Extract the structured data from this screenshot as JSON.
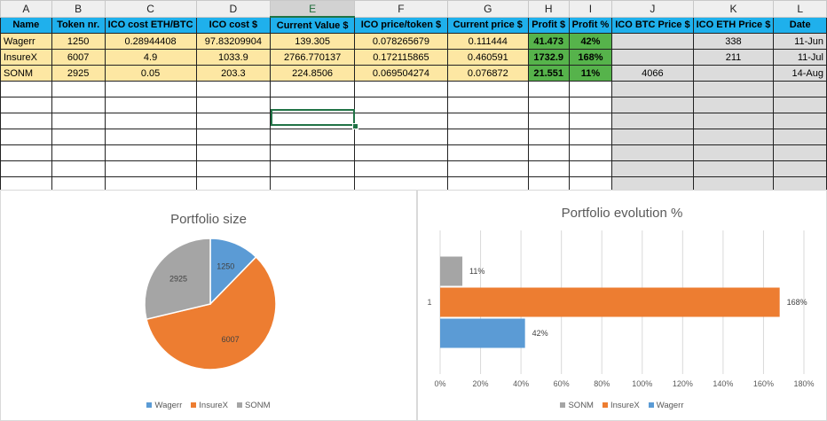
{
  "columns": [
    "A",
    "B",
    "C",
    "D",
    "E",
    "F",
    "G",
    "H",
    "I",
    "J",
    "K",
    "L"
  ],
  "active_column": "E",
  "headers": [
    "Name",
    "Token nr.",
    "ICO cost ETH/BTC",
    "ICO cost $",
    "Current Value $",
    "ICO price/token $",
    "Current price $",
    "Profit $",
    "Profit %",
    "ICO BTC Price $",
    "ICO ETH Price $",
    "Date"
  ],
  "rows": [
    [
      "Wagerr",
      "1250",
      "0.28944408",
      "97.83209904",
      "139.305",
      "0.078265679",
      "0.111444",
      "41.473",
      "42%",
      "",
      "338",
      "11-Jun"
    ],
    [
      "InsureX",
      "6007",
      "4.9",
      "1033.9",
      "2766.770137",
      "0.172115865",
      "0.460591",
      "1732.9",
      "168%",
      "",
      "211",
      "11-Jul"
    ],
    [
      "SONM",
      "2925",
      "0.05",
      "203.3",
      "224.8506",
      "0.069504274",
      "0.076872",
      "21.551",
      "11%",
      "4066",
      "",
      "14-Aug"
    ]
  ],
  "pie_chart": {
    "title": "Portfolio size",
    "chart_data": {
      "type": "pie",
      "labels": [
        "Wagerr",
        "InsureX",
        "SONM"
      ],
      "values": [
        1250,
        6007,
        2925
      ],
      "colors": [
        "#5b9bd5",
        "#ed7d31",
        "#a5a5a5"
      ],
      "legend": "bottom"
    }
  },
  "bar_chart": {
    "title": "Portfolio evolution %",
    "chart_data": {
      "type": "bar",
      "orientation": "horizontal",
      "categories": [
        "1"
      ],
      "series": [
        {
          "name": "SONM",
          "value": 11,
          "label": "11%",
          "color": "#a5a5a5"
        },
        {
          "name": "InsureX",
          "value": 168,
          "label": "168%",
          "color": "#ed7d31"
        },
        {
          "name": "Wagerr",
          "value": 42,
          "label": "42%",
          "color": "#5b9bd5"
        }
      ],
      "xlim": [
        0,
        180
      ],
      "xticks": [
        "0%",
        "20%",
        "40%",
        "60%",
        "80%",
        "100%",
        "120%",
        "140%",
        "160%",
        "180%"
      ],
      "grid": true,
      "legend": "bottom"
    }
  }
}
